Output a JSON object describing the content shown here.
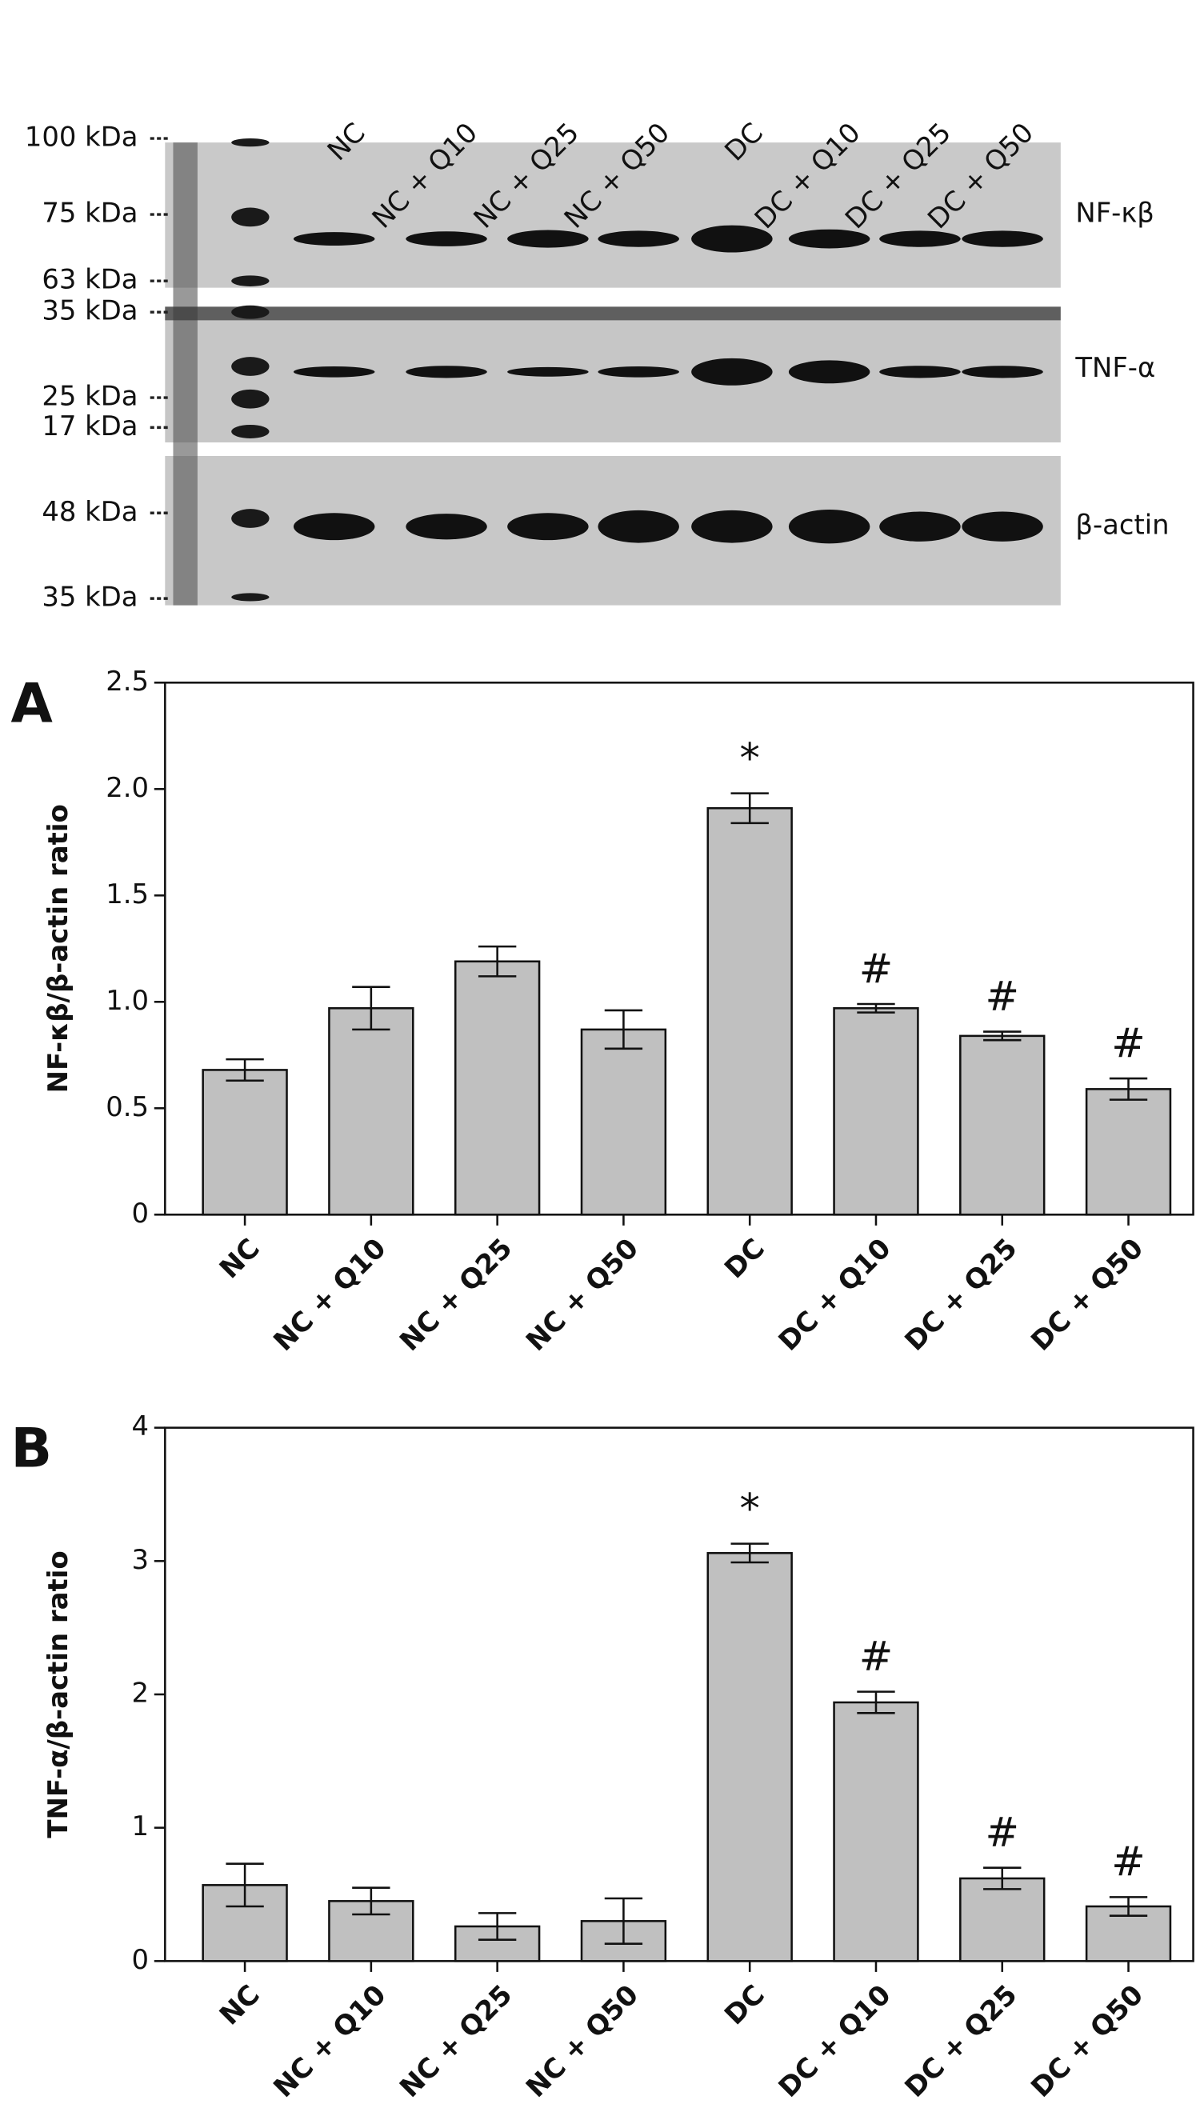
{
  "blot": {
    "lanes": [
      "NC",
      "NC + Q10",
      "NC + Q25",
      "NC + Q50",
      "DC",
      "DC + Q10",
      "DC + Q25",
      "DC + Q50"
    ],
    "markers": [
      "100 kDa",
      "75 kDa",
      "63 kDa",
      "35 kDa",
      "25 kDa",
      "17 kDa",
      "48 kDa",
      "35 kDa"
    ],
    "proteins": [
      "NF-κβ",
      "TNF-α",
      "β-actin"
    ]
  },
  "chart_data": [
    {
      "type": "bar",
      "panel": "A",
      "ylabel": "NF-κβ/β-actin ratio",
      "categories": [
        "NC",
        "NC + Q10",
        "NC + Q25",
        "NC + Q50",
        "DC",
        "DC + Q10",
        "DC + Q25",
        "DC + Q50"
      ],
      "values": [
        0.68,
        0.97,
        1.19,
        0.87,
        1.91,
        0.97,
        0.84,
        0.59
      ],
      "errors": [
        0.05,
        0.1,
        0.07,
        0.09,
        0.07,
        0.02,
        0.02,
        0.05
      ],
      "markers": [
        null,
        null,
        null,
        null,
        "*",
        "#",
        "#",
        "#"
      ],
      "color": "#c0c0c0",
      "ylim": [
        0,
        2.5
      ],
      "yticks": [
        0,
        0.5,
        {
          "value": 1,
          "label": "1.0"
        },
        1.5,
        {
          "value": 2,
          "label": "2.0"
        },
        2.5
      ]
    },
    {
      "type": "bar",
      "panel": "B",
      "ylabel": "TNF-α/β-actin ratio",
      "categories": [
        "NC",
        "NC + Q10",
        "NC + Q25",
        "NC + Q50",
        "DC",
        "DC + Q10",
        "DC + Q25",
        "DC + Q50"
      ],
      "values": [
        0.57,
        0.45,
        0.26,
        0.3,
        3.06,
        1.94,
        0.62,
        0.41
      ],
      "errors": [
        0.16,
        0.1,
        0.1,
        0.17,
        0.07,
        0.08,
        0.08,
        0.07
      ],
      "markers": [
        null,
        null,
        null,
        null,
        "*",
        "#",
        "#",
        "#"
      ],
      "color": "#c0c0c0",
      "ylim": [
        0,
        4
      ],
      "yticks": [
        0,
        1,
        2,
        3,
        4
      ]
    }
  ]
}
